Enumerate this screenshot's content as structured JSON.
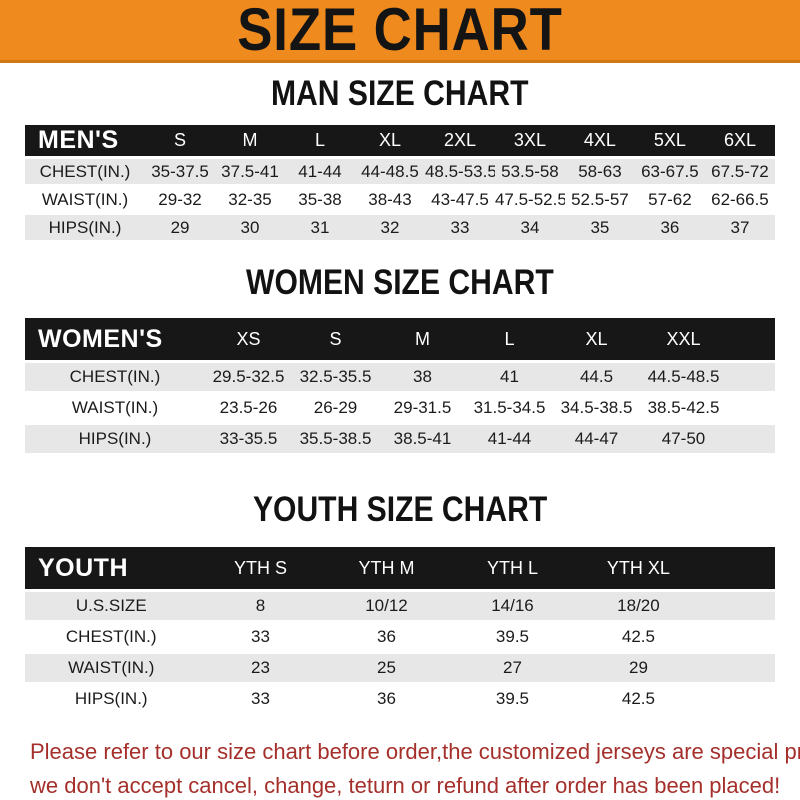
{
  "banner": {
    "title": "SIZE CHART",
    "bg_color": "#EE8A1E",
    "text_color": "#141414"
  },
  "sections": [
    {
      "heading": "MAN SIZE CHART",
      "header_label": "MEN'S",
      "columns": [
        "S",
        "M",
        "L",
        "XL",
        "2XL",
        "3XL",
        "4XL",
        "5XL",
        "6XL"
      ],
      "rows": [
        {
          "label": "CHEST(IN.)",
          "values": [
            "35-37.5",
            "37.5-41",
            "41-44",
            "44-48.5",
            "48.5-53.5",
            "53.5-58",
            "58-63",
            "63-67.5",
            "67.5-72"
          ]
        },
        {
          "label": "WAIST(IN.)",
          "values": [
            "29-32",
            "32-35",
            "35-38",
            "38-43",
            "43-47.5",
            "47.5-52.5",
            "52.5-57",
            "57-62",
            "62-66.5"
          ]
        },
        {
          "label": "HIPS(IN.)",
          "values": [
            "29",
            "30",
            "31",
            "32",
            "33",
            "34",
            "35",
            "36",
            "37"
          ]
        }
      ]
    },
    {
      "heading": "WOMEN SIZE CHART",
      "header_label": "WOMEN'S",
      "columns": [
        "XS",
        "S",
        "M",
        "L",
        "XL",
        "XXL"
      ],
      "rows": [
        {
          "label": "CHEST(IN.)",
          "values": [
            "29.5-32.5",
            "32.5-35.5",
            "38",
            "41",
            "44.5",
            "44.5-48.5"
          ]
        },
        {
          "label": "WAIST(IN.)",
          "values": [
            "23.5-26",
            "26-29",
            "29-31.5",
            "31.5-34.5",
            "34.5-38.5",
            "38.5-42.5"
          ]
        },
        {
          "label": "HIPS(IN.)",
          "values": [
            "33-35.5",
            "35.5-38.5",
            "38.5-41",
            "41-44",
            "44-47",
            "47-50"
          ]
        }
      ]
    },
    {
      "heading": "YOUTH SIZE CHART",
      "header_label": "YOUTH",
      "columns": [
        "YTH S",
        "YTH M",
        "YTH L",
        "YTH XL"
      ],
      "rows": [
        {
          "label": "U.S.SIZE",
          "values": [
            "8",
            "10/12",
            "14/16",
            "18/20"
          ]
        },
        {
          "label": "CHEST(IN.)",
          "values": [
            "33",
            "36",
            "39.5",
            "42.5"
          ]
        },
        {
          "label": "WAIST(IN.)",
          "values": [
            "23",
            "25",
            "27",
            "29"
          ]
        },
        {
          "label": "HIPS(IN.)",
          "values": [
            "33",
            "36",
            "39.5",
            "42.5"
          ]
        }
      ]
    }
  ],
  "footer": {
    "line1": "Please refer to our size chart before order,the customized jerseys are special products,",
    "line2": "we don't accept cancel, change, teturn or refund after order has been placed!",
    "text_color": "#A5302B"
  }
}
